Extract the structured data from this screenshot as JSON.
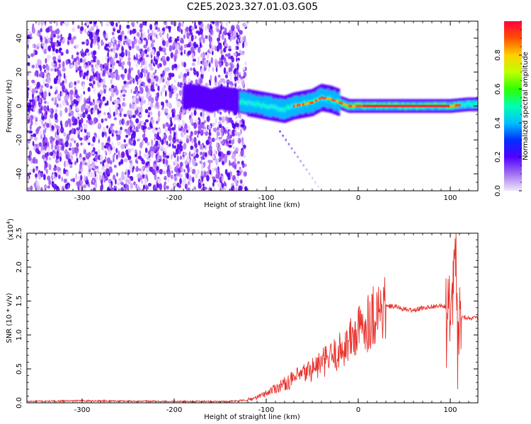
{
  "title": "C2E5.2023.327.01.03.G05",
  "chart_data": [
    {
      "type": "heatmap",
      "xlabel": "Height of straight line (km)",
      "ylabel": "Frequency (Hz)",
      "xlim": [
        -360,
        130
      ],
      "ylim": [
        -50,
        50
      ],
      "xticks": [
        -300,
        -200,
        -100,
        0,
        100
      ],
      "yticks": [
        -40,
        -20,
        0,
        20,
        40
      ],
      "colorbar": {
        "label": "Normalized spectral amplitude",
        "ticks": [
          0.0,
          0.2,
          0.4,
          0.6,
          0.8
        ],
        "range": [
          0,
          1
        ],
        "colors": [
          "#f0e8fc",
          "#a070f0",
          "#5000ff",
          "#0030ff",
          "#00c0ff",
          "#00ffb0",
          "#30ff00",
          "#c0ff00",
          "#ffd000",
          "#ff5000",
          "#ff0040"
        ]
      },
      "ridge": {
        "x": [
          -190,
          -180,
          -170,
          -160,
          -150,
          -140,
          -130,
          -120,
          -110,
          -100,
          -90,
          -80,
          -70,
          -60,
          -50,
          -40,
          -30,
          -20,
          -10,
          0,
          20,
          40,
          60,
          80,
          100,
          120,
          130
        ],
        "y": [
          5,
          6,
          5,
          3,
          5,
          4,
          3,
          2,
          1,
          0,
          -1,
          -2,
          0,
          1,
          2,
          5,
          4,
          2,
          0,
          0,
          0,
          0,
          0,
          0,
          0,
          1,
          1
        ]
      }
    },
    {
      "type": "line",
      "xlabel": "Height of straight line (km)",
      "ylabel": "SNR (10 * v/v)",
      "y_multiplier": "(x10",
      "y_multiplier_exp": "4",
      "y_multiplier_close": ")",
      "xlim": [
        -360,
        130
      ],
      "ylim": [
        0,
        2.5
      ],
      "xticks": [
        -300,
        -200,
        -100,
        0,
        100
      ],
      "yticks": [
        "0.0",
        "0.5",
        "1.0",
        "1.5",
        "2.0",
        "2.5"
      ],
      "color": "#e8302a",
      "series": [
        {
          "x": [
            -360,
            -300,
            -200,
            -140,
            -120,
            -110,
            -100,
            -90,
            -80,
            -70,
            -60,
            -50,
            -40,
            -30,
            -20,
            -10,
            0,
            10,
            20,
            30,
            40,
            50,
            60,
            70,
            80,
            90,
            95,
            100,
            103,
            106,
            108,
            110,
            115,
            120,
            130
          ],
          "y": [
            0.02,
            0.03,
            0.02,
            0.02,
            0.04,
            0.08,
            0.14,
            0.22,
            0.28,
            0.35,
            0.42,
            0.5,
            0.58,
            0.66,
            0.76,
            0.9,
            1.05,
            1.2,
            1.35,
            1.42,
            1.42,
            1.38,
            1.36,
            1.4,
            1.42,
            1.43,
            1.41,
            1.45,
            1.7,
            2.45,
            1.1,
            1.28,
            1.26,
            1.25,
            1.25
          ]
        }
      ]
    }
  ]
}
